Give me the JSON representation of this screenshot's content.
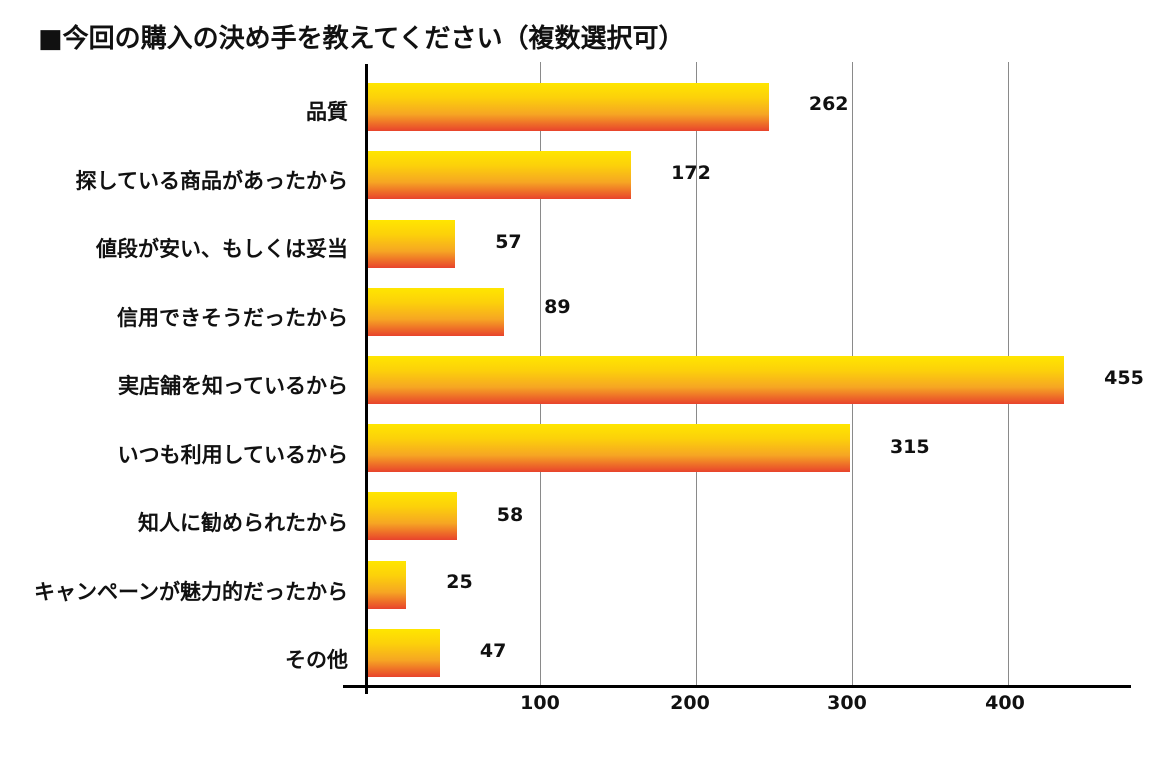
{
  "title": "■今回の購入の決め手を教えてください（複数選択可）",
  "chart_data": {
    "type": "bar",
    "orientation": "horizontal",
    "title": "■今回の購入の決め手を教えてください（複数選択可）",
    "xlabel": "",
    "ylabel": "",
    "categories": [
      "品質",
      "探している商品があったから",
      "値段が安い、もしくは妥当",
      "信用できそうだったから",
      "実店舗を知っているから",
      "いつも利用しているから",
      "知人に勧められたから",
      "キャンペーンが魅力的だったから",
      "その他"
    ],
    "values": [
      262,
      172,
      57,
      89,
      455,
      315,
      58,
      25,
      47
    ],
    "value_labels": [
      "262",
      "172",
      "57",
      "89",
      "455",
      "315",
      "58",
      "25",
      "47"
    ],
    "x_ticks": [
      "100",
      "200",
      "300",
      "400"
    ],
    "xlim": [
      0,
      480
    ],
    "grid": "vertical",
    "legend": "none",
    "bar_gradient": [
      "#ffe600",
      "#f6a623",
      "#e8432c"
    ]
  }
}
